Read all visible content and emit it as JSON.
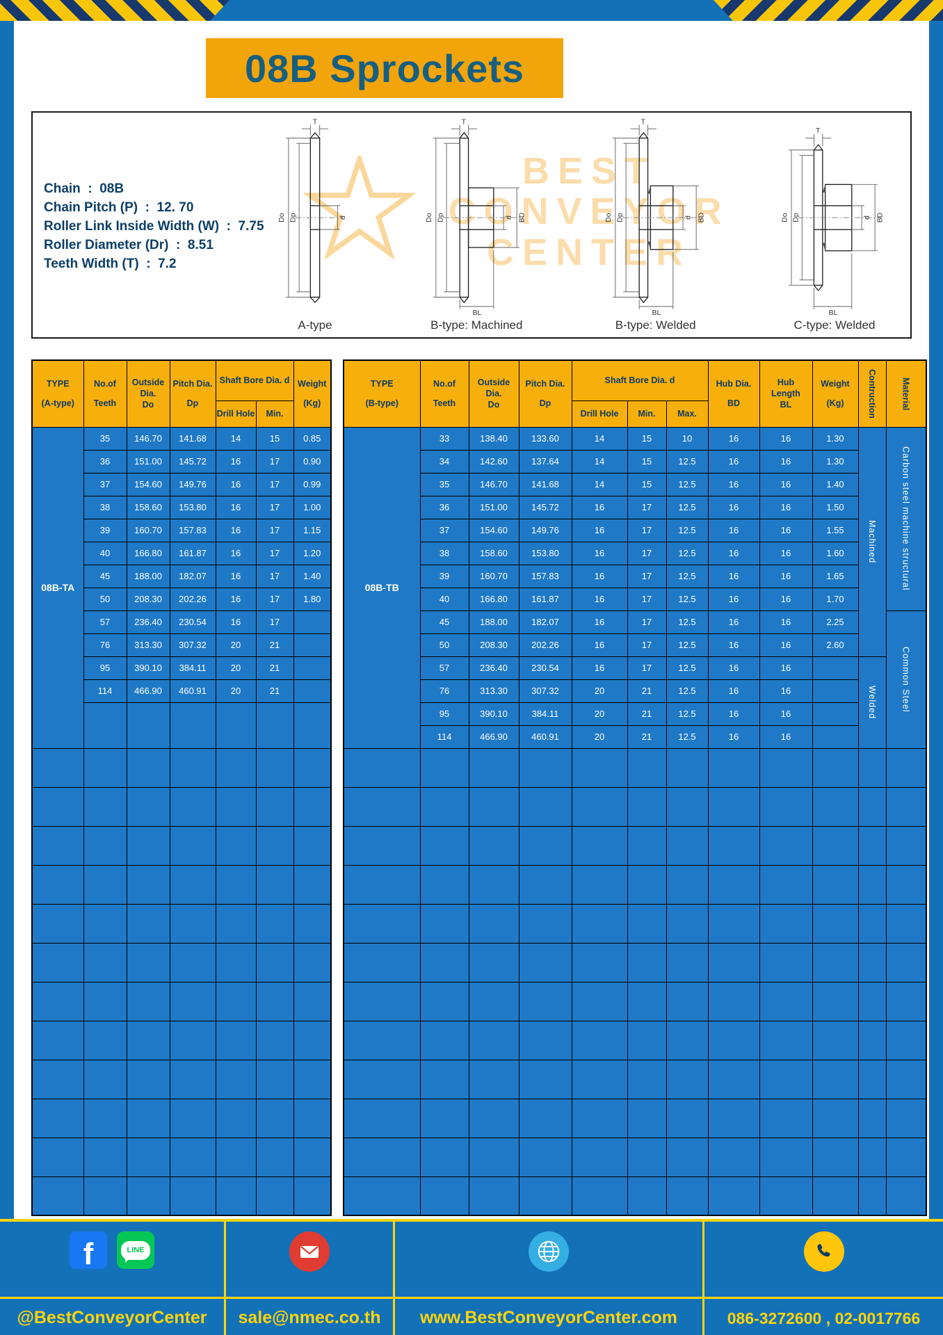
{
  "colors": {
    "frame-blue": "#1371B8",
    "cell-blue": "#1F79C6",
    "gold": "#F6AF0B",
    "title-gold": "#F2A50B",
    "navy": "#0E3A66",
    "yellow": "#FFD40A",
    "title-text": "#175F80"
  },
  "title": "08B Sprockets",
  "specs": [
    "Chain  :  08B",
    "Chain Pitch (P)  :  12. 70",
    "Roller Link Inside Width (W)  :  7.75",
    "Roller Diameter (Dr)  :  8.51",
    "Teeth Width (T)  :  7.2"
  ],
  "dims": {
    "t": "T",
    "do": "Do",
    "dp": "Dp",
    "d": "d",
    "bd": "BD",
    "bl": "BL"
  },
  "drawings": [
    "A-type",
    "B-type: Machined",
    "B-type: Welded",
    "C-type: Welded"
  ],
  "watermark": [
    "BEST",
    "CONVEYOR",
    "CENTER"
  ],
  "table_a": {
    "headers": {
      "type": [
        "TYPE",
        "(A-type)"
      ],
      "teeth": [
        "No.of",
        "Teeth"
      ],
      "outside": [
        "Outside",
        "Dia.",
        "Do"
      ],
      "pitch": [
        "Pitch Dia.",
        "Dp"
      ],
      "shaft": "Shaft Bore Dia. d",
      "drill": "Drill Hole",
      "min": "Min.",
      "weight": [
        "Weight",
        "(Kg)"
      ]
    },
    "type_value": "08B-TA",
    "rows": [
      [
        "35",
        "146.70",
        "141.68",
        "14",
        "15",
        "0.85"
      ],
      [
        "36",
        "151.00",
        "145.72",
        "16",
        "17",
        "0.90"
      ],
      [
        "37",
        "154.60",
        "149.76",
        "16",
        "17",
        "0.99"
      ],
      [
        "38",
        "158.60",
        "153.80",
        "16",
        "17",
        "1.00"
      ],
      [
        "39",
        "160.70",
        "157.83",
        "16",
        "17",
        "1.15"
      ],
      [
        "40",
        "166.80",
        "161.87",
        "16",
        "17",
        "1.20"
      ],
      [
        "45",
        "188.00",
        "182.07",
        "16",
        "17",
        "1.40"
      ],
      [
        "50",
        "208.30",
        "202.26",
        "16",
        "17",
        "1.80"
      ],
      [
        "57",
        "236.40",
        "230.54",
        "16",
        "17",
        ""
      ],
      [
        "76",
        "313.30",
        "307.32",
        "20",
        "21",
        ""
      ],
      [
        "95",
        "390.10",
        "384.11",
        "20",
        "21",
        ""
      ],
      [
        "114",
        "466.90",
        "460.91",
        "20",
        "21",
        ""
      ]
    ],
    "empty_rows": 12
  },
  "table_b": {
    "headers": {
      "type": [
        "TYPE",
        "(B-type)"
      ],
      "teeth": [
        "No.of",
        "Teeth"
      ],
      "outside": [
        "Outside",
        "Dia.",
        "Do"
      ],
      "pitch": [
        "Pitch Dia.",
        "Dp"
      ],
      "shaft": "Shaft Bore Dia. d",
      "drill": "Drill Hole",
      "min": "Min.",
      "max": "Max.",
      "hub_dia": [
        "Hub Dia.",
        "BD"
      ],
      "hub_len": [
        "Hub",
        "Length",
        "BL"
      ],
      "weight": [
        "Weight",
        "(Kg)"
      ],
      "construction": "Contruction",
      "material": "Material"
    },
    "type_value": "08B-TB",
    "rows": [
      [
        "33",
        "138.40",
        "133.60",
        "14",
        "15",
        "10",
        "16",
        "16",
        "1.30"
      ],
      [
        "34",
        "142.60",
        "137.64",
        "14",
        "15",
        "12.5",
        "16",
        "16",
        "1.30"
      ],
      [
        "35",
        "146.70",
        "141.68",
        "14",
        "15",
        "12.5",
        "16",
        "16",
        "1.40"
      ],
      [
        "36",
        "151.00",
        "145.72",
        "16",
        "17",
        "12.5",
        "16",
        "16",
        "1.50"
      ],
      [
        "37",
        "154.60",
        "149.76",
        "16",
        "17",
        "12.5",
        "16",
        "16",
        "1.55"
      ],
      [
        "38",
        "158.60",
        "153.80",
        "16",
        "17",
        "12.5",
        "16",
        "16",
        "1.60"
      ],
      [
        "39",
        "160.70",
        "157.83",
        "16",
        "17",
        "12.5",
        "16",
        "16",
        "1.65"
      ],
      [
        "40",
        "166.80",
        "161.87",
        "16",
        "17",
        "12.5",
        "16",
        "16",
        "1.70"
      ],
      [
        "45",
        "188.00",
        "182.07",
        "16",
        "17",
        "12.5",
        "16",
        "16",
        "2.25"
      ],
      [
        "50",
        "208.30",
        "202.26",
        "16",
        "17",
        "12.5",
        "16",
        "16",
        "2.60"
      ],
      [
        "57",
        "236.40",
        "230.54",
        "16",
        "17",
        "12.5",
        "16",
        "16",
        ""
      ],
      [
        "76",
        "313.30",
        "307.32",
        "20",
        "21",
        "12.5",
        "16",
        "16",
        ""
      ],
      [
        "95",
        "390.10",
        "384.11",
        "20",
        "21",
        "12.5",
        "16",
        "16",
        ""
      ],
      [
        "114",
        "466.90",
        "460.91",
        "20",
        "21",
        "12.5",
        "16",
        "16",
        ""
      ]
    ],
    "span_cells": [
      {
        "row": 0,
        "span": 10,
        "label": "Machined",
        "col": "construction"
      },
      {
        "row": 0,
        "span": 8,
        "label": "Carbon steel  machine structural",
        "col": "material"
      },
      {
        "row": 8,
        "span": 6,
        "label": "Common  Steel",
        "col": "material"
      },
      {
        "row": 10,
        "span": 4,
        "label": "Welded",
        "col": "construction"
      }
    ],
    "empty_rows": 12
  },
  "footer": {
    "facebook_letter": "f",
    "line_label": "LINE",
    "handle": "@BestConveyorCenter",
    "email": "sale@nmec.co.th",
    "website": "www.BestConveyorCenter.com",
    "phones": "086-3272600 , 02-0017766"
  }
}
